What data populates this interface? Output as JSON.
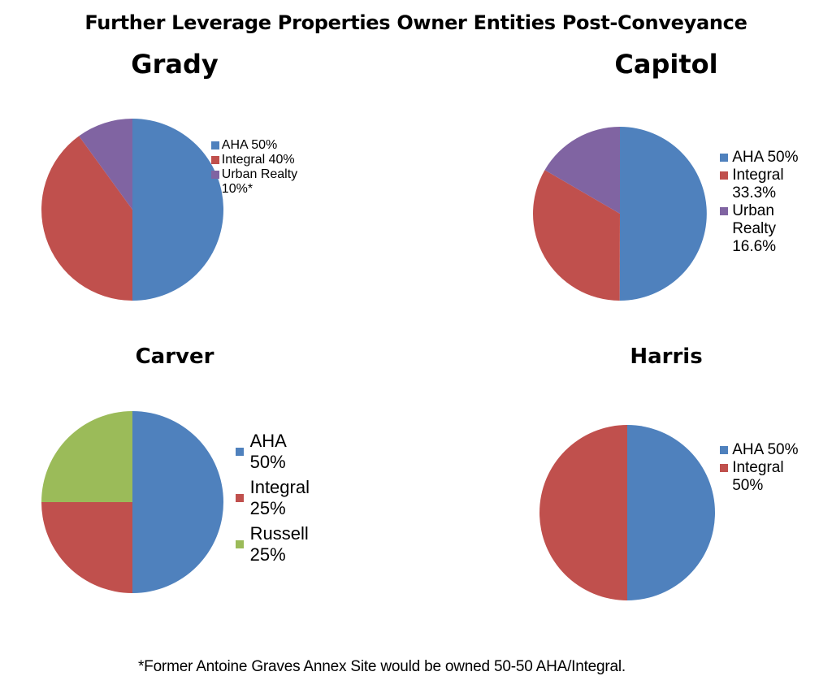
{
  "title": "Further Leverage Properties Owner Entities Post-Conveyance",
  "footnote": "*Former Antoine Graves Annex Site would be owned 50-50 AHA/Integral.",
  "colors": {
    "blue": "#4f81bd",
    "red": "#c0504d",
    "purple": "#8064a2",
    "green": "#9bbb59"
  },
  "chart_data": [
    {
      "type": "pie",
      "title": "Grady",
      "legend_placement": "right",
      "slices": [
        {
          "label": "AHA 50%",
          "value": 50,
          "color": "#4f81bd"
        },
        {
          "label": "Integral 40%",
          "value": 40,
          "color": "#c0504d"
        },
        {
          "label": "Urban Realty 10%*",
          "value": 10,
          "color": "#8064a2"
        }
      ]
    },
    {
      "type": "pie",
      "title": "Capitol",
      "legend_placement": "right",
      "slices": [
        {
          "label": "AHA 50%",
          "value": 50,
          "color": "#4f81bd"
        },
        {
          "label": "Integral 33.3%",
          "value": 33.3,
          "color": "#c0504d"
        },
        {
          "label": "Urban Realty 16.6%",
          "value": 16.6,
          "color": "#8064a2"
        }
      ]
    },
    {
      "type": "pie",
      "title": "Carver",
      "legend_placement": "right",
      "slices": [
        {
          "label": "AHA 50%",
          "value": 50,
          "color": "#4f81bd"
        },
        {
          "label": "Integral 25%",
          "value": 25,
          "color": "#c0504d"
        },
        {
          "label": "Russell 25%",
          "value": 25,
          "color": "#9bbb59"
        }
      ]
    },
    {
      "type": "pie",
      "title": "Harris",
      "legend_placement": "right",
      "slices": [
        {
          "label": "AHA 50%",
          "value": 50,
          "color": "#4f81bd"
        },
        {
          "label": "Integral 50%",
          "value": 50,
          "color": "#c0504d"
        }
      ]
    }
  ]
}
